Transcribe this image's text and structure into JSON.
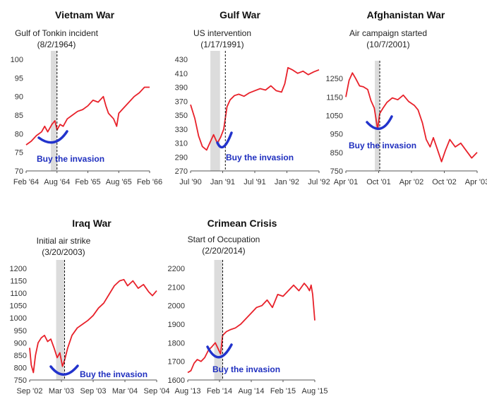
{
  "chart_data": [
    {
      "type": "line",
      "title": "Vietnam War",
      "annotation": [
        "Gulf of Tonkin incident",
        "(8/2/1964)"
      ],
      "callout": "Buy the invasion",
      "x_tick_labels": [
        "Feb '64",
        "Aug '64",
        "Feb '65",
        "Aug '65",
        "Feb '66"
      ],
      "x_tick_pos": [
        0,
        6,
        12,
        18,
        24
      ],
      "event_x": 6,
      "shade_range": [
        4.8,
        6
      ],
      "xlim": [
        0,
        24
      ],
      "ylim": [
        70,
        100
      ],
      "y_ticks": [
        70,
        75,
        80,
        85,
        90,
        95,
        100
      ],
      "series": [
        {
          "color": "#e8212a",
          "x": [
            0,
            1,
            2,
            3,
            3.6,
            4.2,
            5,
            5.6,
            6,
            6.6,
            7.2,
            8,
            9,
            10,
            11,
            12,
            13,
            14,
            15,
            15.5,
            16,
            17,
            17.6,
            18,
            19,
            20,
            21,
            22,
            23,
            24
          ],
          "y": [
            77,
            78,
            79.5,
            80.5,
            82,
            80.5,
            82.5,
            83.5,
            81,
            82.5,
            82,
            84,
            85,
            86,
            86.5,
            87.5,
            89,
            88.5,
            90,
            87.5,
            85.5,
            84,
            82,
            85.5,
            87,
            88.5,
            90,
            91,
            92.5,
            92.5
          ]
        }
      ]
    },
    {
      "type": "line",
      "title": "Gulf War",
      "annotation": [
        "US intervention",
        "(1/17/1991)"
      ],
      "callout": "Buy the invasion",
      "x_tick_labels": [
        "Jul '90",
        "Jan '91",
        "Jul '91",
        "Jan '92",
        "Jul '92"
      ],
      "x_tick_pos": [
        0,
        6,
        12,
        18,
        24
      ],
      "event_x": 6.5,
      "shade_range": [
        3.7,
        5.5
      ],
      "xlim": [
        0,
        24
      ],
      "ylim": [
        270,
        430
      ],
      "y_ticks": [
        270,
        290,
        310,
        330,
        350,
        370,
        390,
        410,
        430
      ],
      "series": [
        {
          "color": "#e8212a",
          "x": [
            0,
            0.8,
            1.5,
            2.2,
            3,
            3.7,
            4.3,
            5,
            5.6,
            6.2,
            6.8,
            7.4,
            8.2,
            9,
            10,
            11,
            12,
            13,
            14,
            15,
            16,
            17,
            17.6,
            18.2,
            19,
            20,
            21,
            22,
            23,
            24
          ],
          "y": [
            365,
            345,
            320,
            305,
            300,
            312,
            322,
            310,
            318,
            330,
            362,
            372,
            378,
            380,
            377,
            382,
            385,
            388,
            386,
            392,
            385,
            383,
            395,
            418,
            415,
            410,
            413,
            408,
            412,
            415
          ]
        }
      ]
    },
    {
      "type": "line",
      "title": "Afghanistan War",
      "annotation": [
        "Air campaign started",
        "(10/7/2001)"
      ],
      "callout": "Buy the invasion",
      "x_tick_labels": [
        "Apr '01",
        "Oct '01",
        "Apr '02",
        "Oct '02",
        "Apr '03"
      ],
      "x_tick_pos": [
        0,
        6,
        12,
        18,
        24
      ],
      "event_x": 6.2,
      "shade_range": [
        5.3,
        6.2
      ],
      "xlim": [
        0,
        24
      ],
      "ylim": [
        750,
        1300
      ],
      "y_ticks": [
        750,
        850,
        950,
        1050,
        1150,
        1250
      ],
      "series": [
        {
          "color": "#e8212a",
          "x": [
            0,
            0.6,
            1.2,
            1.8,
            2.5,
            3.2,
            4,
            4.6,
            5.2,
            5.5,
            5.8,
            6.2,
            6.8,
            7.5,
            8.5,
            9.5,
            10.5,
            11.5,
            12.5,
            13.2,
            14,
            14.7,
            15.4,
            16,
            16.7,
            17.5,
            18.2,
            19,
            20,
            21,
            22,
            23,
            24
          ],
          "y": [
            1150,
            1240,
            1280,
            1250,
            1210,
            1205,
            1190,
            1130,
            1090,
            1035,
            975,
            1060,
            1090,
            1120,
            1145,
            1135,
            1160,
            1125,
            1105,
            1080,
            1010,
            920,
            880,
            930,
            870,
            800,
            860,
            920,
            880,
            900,
            860,
            820,
            850
          ]
        }
      ]
    },
    {
      "type": "line",
      "title": "Iraq War",
      "annotation": [
        "Initial air strike",
        "(3/20/2003)"
      ],
      "callout": "Buy the invasion",
      "x_tick_labels": [
        "Sep '02",
        "Mar '03",
        "Sep '03",
        "Mar '04",
        "Sep '04"
      ],
      "x_tick_pos": [
        0,
        6,
        12,
        18,
        24
      ],
      "event_x": 6.6,
      "shade_range": [
        5,
        6.6
      ],
      "xlim": [
        0,
        24
      ],
      "ylim": [
        750,
        1200
      ],
      "y_ticks": [
        750,
        800,
        850,
        900,
        950,
        1000,
        1050,
        1100,
        1150,
        1200
      ],
      "series": [
        {
          "color": "#e8212a",
          "x": [
            0,
            0.3,
            0.7,
            1.1,
            1.6,
            2.2,
            2.8,
            3.4,
            4,
            4.6,
            5.2,
            5.7,
            6.2,
            6.6,
            7.2,
            8,
            9,
            10,
            11,
            12,
            13,
            14,
            15,
            16,
            17,
            17.8,
            18.5,
            19.5,
            20.5,
            21.5,
            22.5,
            23.2,
            24
          ],
          "y": [
            880,
            810,
            780,
            850,
            900,
            920,
            930,
            905,
            915,
            880,
            840,
            860,
            805,
            830,
            880,
            930,
            960,
            975,
            990,
            1010,
            1040,
            1060,
            1095,
            1130,
            1150,
            1155,
            1130,
            1150,
            1120,
            1135,
            1105,
            1090,
            1110
          ]
        }
      ]
    },
    {
      "type": "line",
      "title": "Crimean Crisis",
      "annotation": [
        "Start of Occupation",
        "(2/20/2014)"
      ],
      "callout": "Buy the invasion",
      "x_tick_labels": [
        "Aug '13",
        "Feb '14",
        "Aug '14",
        "Feb '15",
        "Aug '15"
      ],
      "x_tick_pos": [
        0,
        6,
        12,
        18,
        24
      ],
      "event_x": 6.6,
      "shade_range": [
        5,
        6.6
      ],
      "xlim": [
        0,
        24
      ],
      "ylim": [
        1600,
        2200
      ],
      "y_ticks": [
        1600,
        1700,
        1800,
        1900,
        2000,
        2100,
        2200
      ],
      "series": [
        {
          "color": "#e8212a",
          "x": [
            0,
            0.6,
            1.2,
            1.8,
            2.5,
            3.2,
            3.9,
            4.6,
            5.2,
            5.7,
            6.2,
            6.6,
            7.3,
            8,
            9,
            10,
            11,
            12,
            13,
            14,
            15,
            16,
            17,
            18,
            19,
            20,
            21,
            22,
            22.6,
            23,
            23.3,
            23.6,
            24
          ],
          "y": [
            1640,
            1650,
            1690,
            1710,
            1700,
            1720,
            1760,
            1780,
            1800,
            1770,
            1740,
            1840,
            1860,
            1870,
            1880,
            1900,
            1930,
            1960,
            1990,
            2000,
            2030,
            1990,
            2060,
            2050,
            2080,
            2110,
            2080,
            2120,
            2100,
            2080,
            2110,
            2060,
            1920
          ]
        }
      ]
    }
  ]
}
